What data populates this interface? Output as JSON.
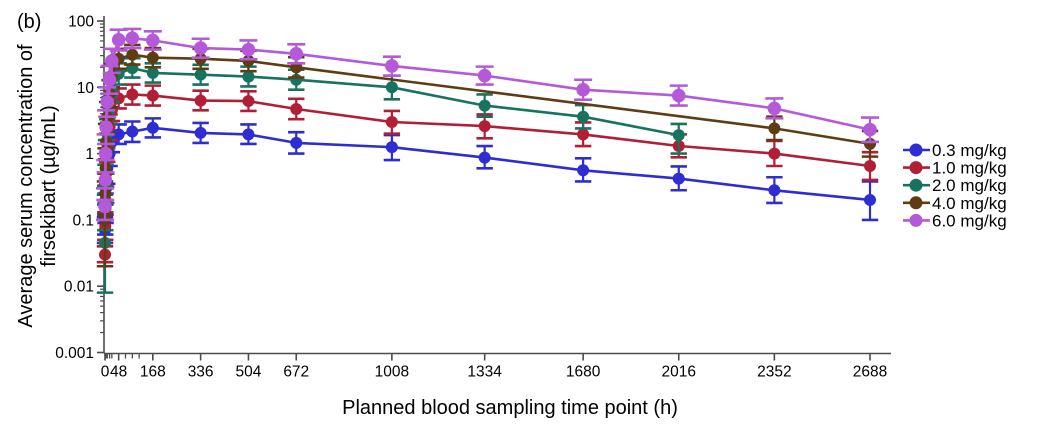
{
  "panel_label": "(b)",
  "chart_data": {
    "type": "line",
    "title": "",
    "xlabel": "Planned blood sampling time point (h)",
    "ylabel_line1": "Average serum concentration of",
    "ylabel_line2": "firsekibart (µg/mL)",
    "x_scale": "linear",
    "y_scale": "log10",
    "xlim": [
      0,
      2688
    ],
    "ylim": [
      0.001,
      100
    ],
    "x_ticks_labeled": [
      0,
      48,
      168,
      336,
      504,
      672,
      1008,
      1334,
      1680,
      2016,
      2352,
      2688
    ],
    "x_ticks_minor": [
      2,
      4,
      8,
      16,
      24,
      72,
      96,
      120
    ],
    "y_ticks_labeled": [
      100,
      10,
      1,
      0.1,
      0.01,
      0.001
    ],
    "y_minor_per_decade": [
      2,
      3,
      4,
      5,
      6,
      7,
      8,
      9
    ],
    "grid": false,
    "error_bars": true,
    "legend_position": "right-outside",
    "axis_color": "#4b4b4b",
    "series": [
      {
        "name": "0.3 mg/kg",
        "color": "#2d2dd2",
        "marker": "circle",
        "marker_size": 6,
        "points": [
          [
            0,
            0.07,
            0.045,
            0.11
          ],
          [
            1,
            0.1,
            0.06,
            0.17
          ],
          [
            2,
            0.15,
            0.09,
            0.25
          ],
          [
            4,
            0.3,
            0.18,
            0.5
          ],
          [
            8,
            0.6,
            0.35,
            1.0
          ],
          [
            16,
            1.0,
            0.65,
            1.55
          ],
          [
            24,
            1.5,
            1.05,
            2.15
          ],
          [
            48,
            1.95,
            1.4,
            2.75
          ],
          [
            96,
            2.15,
            1.5,
            3.05
          ],
          [
            168,
            2.45,
            1.75,
            3.4
          ],
          [
            336,
            2.05,
            1.45,
            2.9
          ],
          [
            504,
            1.95,
            1.4,
            2.75
          ],
          [
            672,
            1.45,
            1.0,
            2.1
          ],
          [
            1008,
            1.25,
            0.8,
            1.9
          ],
          [
            1334,
            0.87,
            0.6,
            1.3
          ],
          [
            1680,
            0.56,
            0.38,
            0.85
          ],
          [
            2016,
            0.42,
            0.28,
            0.64
          ],
          [
            2352,
            0.28,
            0.18,
            0.44
          ],
          [
            2688,
            0.2,
            0.1,
            0.38
          ]
        ]
      },
      {
        "name": "1.0 mg/kg",
        "color": "#b01f35",
        "marker": "circle",
        "marker_size": 6,
        "points": [
          [
            0,
            0.03,
            0.023,
            0.04
          ],
          [
            1,
            0.08,
            0.05,
            0.13
          ],
          [
            2,
            0.2,
            0.12,
            0.33
          ],
          [
            4,
            0.5,
            0.31,
            0.82
          ],
          [
            8,
            1.2,
            0.75,
            1.95
          ],
          [
            16,
            2.5,
            1.6,
            3.9
          ],
          [
            24,
            4.5,
            3.1,
            6.6
          ],
          [
            48,
            6.8,
            4.8,
            9.6
          ],
          [
            96,
            7.8,
            5.5,
            11.0
          ],
          [
            168,
            7.5,
            5.3,
            10.6
          ],
          [
            336,
            6.3,
            4.5,
            8.9
          ],
          [
            504,
            6.2,
            4.4,
            8.7
          ],
          [
            672,
            4.7,
            3.3,
            6.7
          ],
          [
            1008,
            3.0,
            2.0,
            4.4
          ],
          [
            1334,
            2.6,
            1.7,
            3.9
          ],
          [
            1680,
            1.95,
            1.3,
            2.95
          ],
          [
            2016,
            1.3,
            0.88,
            1.95
          ],
          [
            2352,
            1.0,
            0.65,
            1.55
          ],
          [
            2688,
            0.65,
            0.4,
            1.05
          ]
        ]
      },
      {
        "name": "2.0 mg/kg",
        "color": "#17735f",
        "marker": "circle",
        "marker_size": 6,
        "points": [
          [
            0,
            0.045,
            0.008,
            0.24
          ],
          [
            1,
            0.15,
            0.07,
            0.32
          ],
          [
            2,
            0.35,
            0.18,
            0.68
          ],
          [
            4,
            0.9,
            0.5,
            1.6
          ],
          [
            8,
            2.0,
            1.2,
            3.3
          ],
          [
            16,
            4.5,
            2.8,
            7.1
          ],
          [
            24,
            9.0,
            6.0,
            13.5
          ],
          [
            48,
            16.0,
            11.0,
            23.0
          ],
          [
            96,
            19.5,
            14.0,
            27.5
          ],
          [
            168,
            16.5,
            11.8,
            23.0
          ],
          [
            336,
            15.5,
            11.0,
            21.8
          ],
          [
            504,
            14.5,
            10.3,
            20.5
          ],
          [
            672,
            13.0,
            9.2,
            18.4
          ],
          [
            1008,
            10.0,
            6.6,
            15.0
          ],
          [
            1334,
            5.3,
            3.6,
            7.8
          ],
          [
            1680,
            3.6,
            2.4,
            5.4
          ],
          [
            2016,
            1.9,
            1.0,
            2.8
          ]
        ]
      },
      {
        "name": "4.0 mg/kg",
        "color": "#5f3c12",
        "marker": "circle",
        "marker_size": 6,
        "points": [
          [
            0,
            0.1,
            0.02,
            0.38
          ],
          [
            1,
            0.25,
            0.12,
            0.5
          ],
          [
            2,
            0.6,
            0.3,
            1.2
          ],
          [
            4,
            1.5,
            0.8,
            2.8
          ],
          [
            8,
            3.5,
            2.0,
            6.0
          ],
          [
            16,
            8.0,
            5.0,
            12.8
          ],
          [
            24,
            15.0,
            10.0,
            22.5
          ],
          [
            48,
            27.0,
            19.0,
            38.0
          ],
          [
            96,
            31.0,
            22.0,
            43.5
          ],
          [
            168,
            28.0,
            20.0,
            39.0
          ],
          [
            336,
            27.0,
            19.0,
            38.0
          ],
          [
            504,
            25.0,
            17.5,
            35.5
          ],
          [
            672,
            20.0,
            14.0,
            28.5
          ],
          [
            2352,
            2.4,
            1.6,
            3.6
          ],
          [
            2688,
            1.4,
            0.9,
            2.2
          ]
        ]
      },
      {
        "name": "6.0 mg/kg",
        "color": "#b45ad8",
        "marker": "circle",
        "marker_size": 6.8,
        "points": [
          [
            0,
            0.16,
            0.1,
            0.3
          ],
          [
            1,
            0.4,
            0.2,
            0.8
          ],
          [
            2,
            1.0,
            0.52,
            1.95
          ],
          [
            4,
            2.5,
            1.4,
            4.5
          ],
          [
            8,
            6.0,
            3.6,
            10.0
          ],
          [
            16,
            13.0,
            8.0,
            21.0
          ],
          [
            24,
            25.0,
            16.5,
            38.0
          ],
          [
            48,
            52.0,
            36.0,
            74.0
          ],
          [
            96,
            55.0,
            39.0,
            76.0
          ],
          [
            168,
            51.0,
            37.0,
            70.0
          ],
          [
            336,
            39.0,
            28.0,
            54.0
          ],
          [
            504,
            37.0,
            26.5,
            51.0
          ],
          [
            672,
            32.0,
            23.0,
            44.5
          ],
          [
            1008,
            21.0,
            15.0,
            29.0
          ],
          [
            1334,
            15.0,
            11.0,
            20.5
          ],
          [
            1680,
            9.2,
            6.5,
            13.0
          ],
          [
            2016,
            7.5,
            5.3,
            10.6
          ],
          [
            2352,
            4.8,
            3.4,
            6.8
          ],
          [
            2688,
            2.3,
            1.5,
            3.5
          ]
        ]
      }
    ]
  }
}
